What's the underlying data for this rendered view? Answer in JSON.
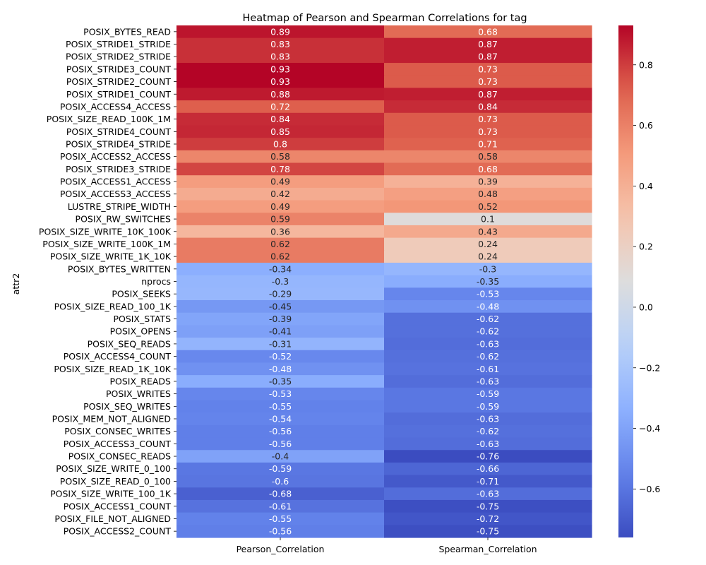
{
  "chart_data": {
    "type": "heatmap",
    "title": "Heatmap of Pearson and Spearman Correlations for tag",
    "ylabel": "attr2",
    "xlabel": "",
    "columns": [
      "Pearson_Correlation",
      "Spearman_Correlation"
    ],
    "rows": [
      "POSIX_BYTES_READ",
      "POSIX_STRIDE1_STRIDE",
      "POSIX_STRIDE2_STRIDE",
      "POSIX_STRIDE3_COUNT",
      "POSIX_STRIDE2_COUNT",
      "POSIX_STRIDE1_COUNT",
      "POSIX_ACCESS4_ACCESS",
      "POSIX_SIZE_READ_100K_1M",
      "POSIX_STRIDE4_COUNT",
      "POSIX_STRIDE4_STRIDE",
      "POSIX_ACCESS2_ACCESS",
      "POSIX_STRIDE3_STRIDE",
      "POSIX_ACCESS1_ACCESS",
      "POSIX_ACCESS3_ACCESS",
      "LUSTRE_STRIPE_WIDTH",
      "POSIX_RW_SWITCHES",
      "POSIX_SIZE_WRITE_10K_100K",
      "POSIX_SIZE_WRITE_100K_1M",
      "POSIX_SIZE_WRITE_1K_10K",
      "POSIX_BYTES_WRITTEN",
      "nprocs",
      "POSIX_SEEKS",
      "POSIX_SIZE_READ_100_1K",
      "POSIX_STATS",
      "POSIX_OPENS",
      "POSIX_SEQ_READS",
      "POSIX_ACCESS4_COUNT",
      "POSIX_SIZE_READ_1K_10K",
      "POSIX_READS",
      "POSIX_WRITES",
      "POSIX_SEQ_WRITES",
      "POSIX_MEM_NOT_ALIGNED",
      "POSIX_CONSEC_WRITES",
      "POSIX_ACCESS3_COUNT",
      "POSIX_CONSEC_READS",
      "POSIX_SIZE_WRITE_0_100",
      "POSIX_SIZE_READ_0_100",
      "POSIX_SIZE_WRITE_100_1K",
      "POSIX_ACCESS1_COUNT",
      "POSIX_FILE_NOT_ALIGNED",
      "POSIX_ACCESS2_COUNT"
    ],
    "values": [
      [
        0.89,
        0.68
      ],
      [
        0.83,
        0.87
      ],
      [
        0.83,
        0.87
      ],
      [
        0.93,
        0.73
      ],
      [
        0.93,
        0.73
      ],
      [
        0.88,
        0.87
      ],
      [
        0.72,
        0.84
      ],
      [
        0.84,
        0.73
      ],
      [
        0.85,
        0.73
      ],
      [
        0.8,
        0.71
      ],
      [
        0.58,
        0.58
      ],
      [
        0.78,
        0.68
      ],
      [
        0.49,
        0.39
      ],
      [
        0.42,
        0.48
      ],
      [
        0.49,
        0.52
      ],
      [
        0.59,
        0.1
      ],
      [
        0.36,
        0.43
      ],
      [
        0.62,
        0.24
      ],
      [
        0.62,
        0.24
      ],
      [
        -0.34,
        -0.3
      ],
      [
        -0.3,
        -0.35
      ],
      [
        -0.29,
        -0.53
      ],
      [
        -0.45,
        -0.48
      ],
      [
        -0.39,
        -0.62
      ],
      [
        -0.41,
        -0.62
      ],
      [
        -0.31,
        -0.63
      ],
      [
        -0.52,
        -0.62
      ],
      [
        -0.48,
        -0.61
      ],
      [
        -0.35,
        -0.63
      ],
      [
        -0.53,
        -0.59
      ],
      [
        -0.55,
        -0.59
      ],
      [
        -0.54,
        -0.63
      ],
      [
        -0.56,
        -0.62
      ],
      [
        -0.56,
        -0.63
      ],
      [
        -0.4,
        -0.76
      ],
      [
        -0.59,
        -0.66
      ],
      [
        -0.6,
        -0.71
      ],
      [
        -0.68,
        -0.63
      ],
      [
        -0.61,
        -0.75
      ],
      [
        -0.55,
        -0.72
      ],
      [
        -0.56,
        -0.75
      ]
    ],
    "colormap": "coolwarm",
    "vmin": -0.76,
    "vmax": 0.93,
    "colorbar_ticks": [
      "0.8",
      "0.6",
      "0.4",
      "0.2",
      "0.0",
      "−0.2",
      "−0.4",
      "−0.6"
    ],
    "colorbar_tick_values": [
      0.8,
      0.6,
      0.4,
      0.2,
      0.0,
      -0.2,
      -0.4,
      -0.6
    ]
  }
}
